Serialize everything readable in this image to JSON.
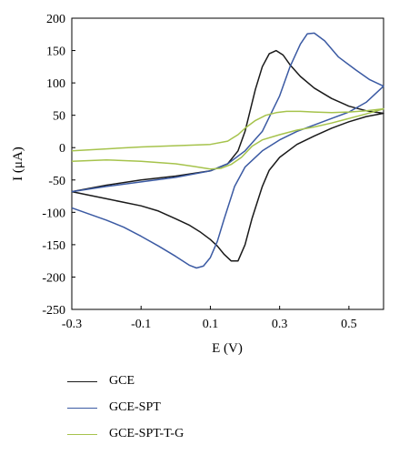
{
  "chart_data": {
    "type": "line",
    "title": "",
    "xlabel": "E (V)",
    "ylabel": "I (μA)",
    "xlim": [
      -0.3,
      0.6
    ],
    "ylim": [
      -250,
      200
    ],
    "xticks": [
      -0.3,
      -0.1,
      0.1,
      0.3,
      0.5
    ],
    "yticks": [
      -250,
      -200,
      -150,
      -100,
      -50,
      0,
      50,
      100,
      150,
      200
    ],
    "xtick_labels": [
      "-0.3",
      "-0.1",
      "0.1",
      "0.3",
      "0.5"
    ],
    "ytick_labels": [
      "-250",
      "-200",
      "-150",
      "-100",
      "-50",
      "0",
      "50",
      "100",
      "150",
      "200"
    ],
    "legend_position": "below",
    "grid": false,
    "series": [
      {
        "name": "GCE",
        "color": "#1a1a1a",
        "x": [
          -0.3,
          -0.2,
          -0.1,
          0.0,
          0.1,
          0.15,
          0.18,
          0.2,
          0.23,
          0.25,
          0.27,
          0.29,
          0.31,
          0.33,
          0.36,
          0.4,
          0.45,
          0.5,
          0.55,
          0.6,
          0.55,
          0.5,
          0.45,
          0.4,
          0.35,
          0.3,
          0.27,
          0.25,
          0.22,
          0.2,
          0.18,
          0.16,
          0.14,
          0.12,
          0.1,
          0.07,
          0.04,
          0.0,
          -0.05,
          -0.1,
          -0.2,
          -0.3
        ],
        "y": [
          -68,
          -58,
          -50,
          -44,
          -36,
          -25,
          -5,
          25,
          90,
          125,
          145,
          150,
          143,
          128,
          110,
          92,
          76,
          64,
          57,
          53,
          48,
          40,
          30,
          18,
          5,
          -15,
          -35,
          -60,
          -110,
          -150,
          -175,
          -175,
          -165,
          -152,
          -142,
          -130,
          -120,
          -110,
          -98,
          -90,
          -79,
          -68
        ]
      },
      {
        "name": "GCE-SPT",
        "color": "#3b5aa3",
        "x": [
          -0.3,
          -0.2,
          -0.1,
          0.0,
          0.1,
          0.15,
          0.2,
          0.25,
          0.3,
          0.33,
          0.36,
          0.38,
          0.4,
          0.43,
          0.47,
          0.52,
          0.56,
          0.6,
          0.55,
          0.5,
          0.45,
          0.4,
          0.35,
          0.3,
          0.25,
          0.2,
          0.17,
          0.14,
          0.12,
          0.1,
          0.08,
          0.06,
          0.04,
          0.0,
          -0.05,
          -0.1,
          -0.15,
          -0.2,
          -0.3
        ],
        "y": [
          -68,
          -60,
          -53,
          -46,
          -36,
          -25,
          -5,
          25,
          80,
          125,
          160,
          176,
          177,
          165,
          140,
          120,
          105,
          95,
          70,
          55,
          45,
          35,
          25,
          12,
          -5,
          -30,
          -60,
          -110,
          -145,
          -170,
          -183,
          -186,
          -182,
          -168,
          -152,
          -137,
          -123,
          -112,
          -93
        ]
      },
      {
        "name": "GCE-SPT-T-G",
        "color": "#a6c34c",
        "x": [
          -0.3,
          -0.2,
          -0.1,
          0.0,
          0.1,
          0.15,
          0.18,
          0.2,
          0.23,
          0.26,
          0.29,
          0.32,
          0.36,
          0.4,
          0.45,
          0.5,
          0.55,
          0.6,
          0.55,
          0.5,
          0.45,
          0.4,
          0.35,
          0.3,
          0.25,
          0.22,
          0.19,
          0.16,
          0.13,
          0.1,
          0.05,
          0.0,
          -0.1,
          -0.2,
          -0.3
        ],
        "y": [
          -5,
          -2,
          1,
          3,
          5,
          10,
          20,
          30,
          42,
          50,
          54,
          56,
          56,
          55,
          54,
          55,
          57,
          60,
          52,
          45,
          38,
          32,
          27,
          20,
          12,
          2,
          -15,
          -26,
          -32,
          -33,
          -29,
          -25,
          -21,
          -19,
          -21
        ]
      }
    ]
  }
}
